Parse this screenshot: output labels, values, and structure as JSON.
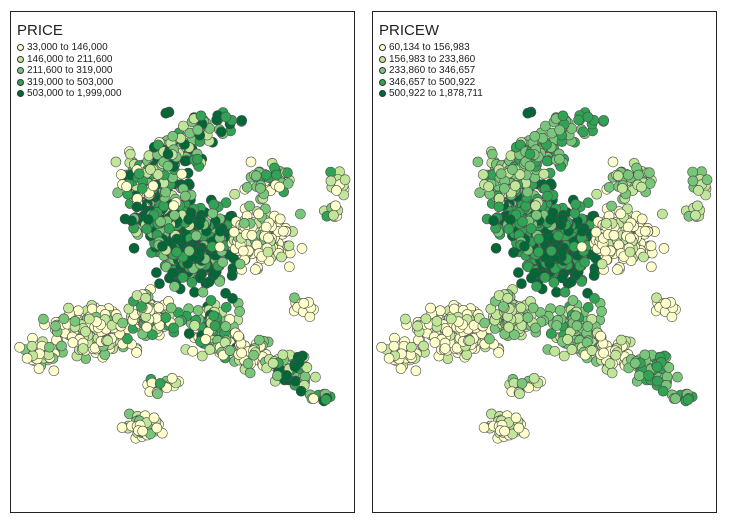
{
  "maps": [
    {
      "id": "price",
      "title": "PRICE",
      "legend": [
        {
          "label": "33,000 to 146,000",
          "color": "#ffffcc"
        },
        {
          "label": "146,000 to 211,600",
          "color": "#c2e699"
        },
        {
          "label": "211,600 to 319,000",
          "color": "#78c679"
        },
        {
          "label": "319,000 to 503,000",
          "color": "#31a354"
        },
        {
          "label": "503,000 to 1,999,000",
          "color": "#006837"
        }
      ]
    },
    {
      "id": "pricew",
      "title": "PRICEW",
      "legend": [
        {
          "label": "60,134 to 156,983",
          "color": "#ffffcc"
        },
        {
          "label": "156,983 to 233,860",
          "color": "#c2e699"
        },
        {
          "label": "233,860 to 346,657",
          "color": "#78c679"
        },
        {
          "label": "346,657 to 500,922",
          "color": "#31a354"
        },
        {
          "label": "500,922 to 1,878,711",
          "color": "#006837"
        }
      ]
    }
  ]
}
